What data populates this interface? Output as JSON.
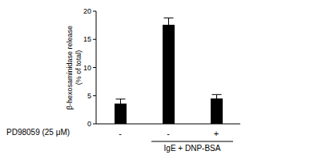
{
  "chart_data": {
    "type": "bar",
    "y_label": "β-hexosaminidase release (% of total)",
    "x_label": "PD98059 (25 μM)",
    "categories": [
      "-",
      "-",
      "+"
    ],
    "values": [
      3.6,
      17.6,
      4.5
    ],
    "errors": [
      0.8,
      1.2,
      0.7
    ],
    "color": "#000000",
    "ylim": [
      0,
      20
    ],
    "yticks": [
      0,
      5,
      10,
      15,
      20
    ],
    "grid": false,
    "annotations": [
      {
        "text": "IgE + DNP-BSA",
        "from": 1,
        "to": 2
      }
    ]
  }
}
